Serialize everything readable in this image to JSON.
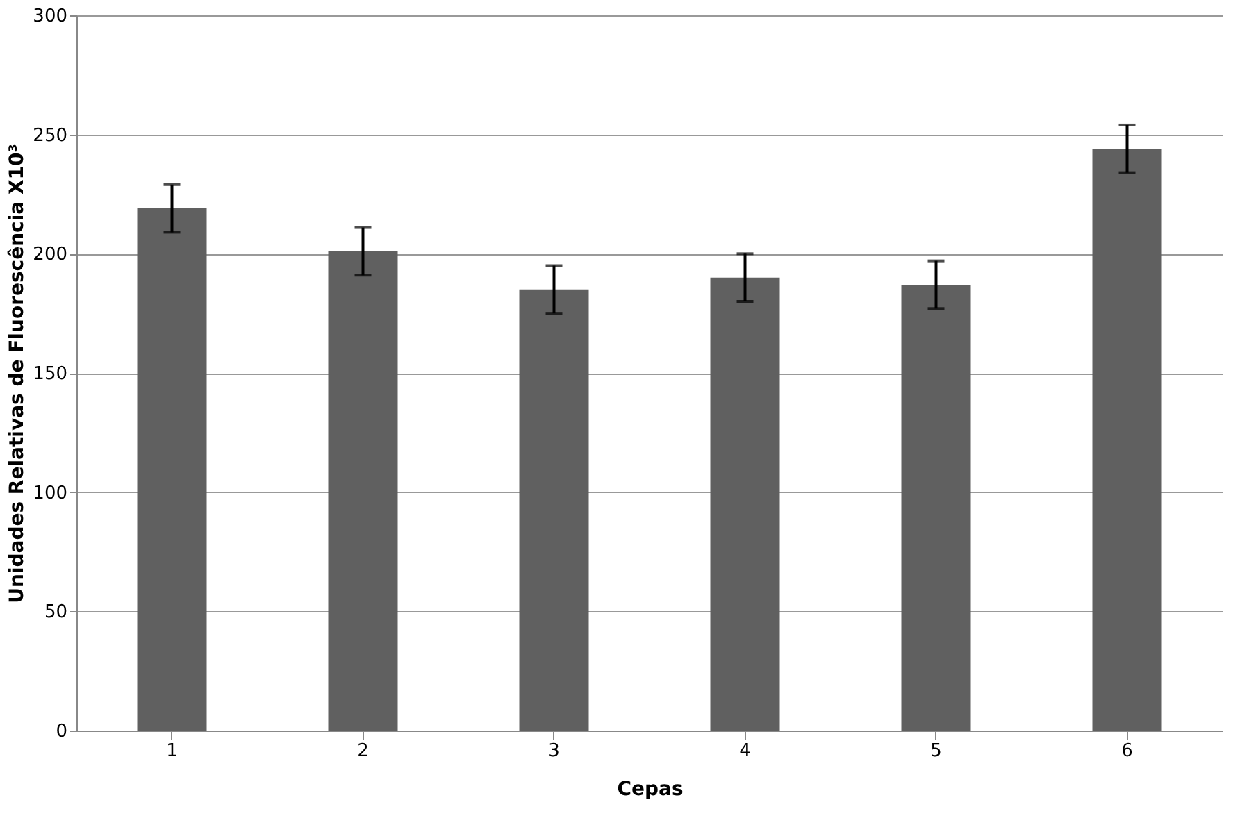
{
  "chart_data": {
    "type": "bar",
    "xlabel": "Cepas",
    "ylabel": "Unidades Relativas de Fluorescência X10³",
    "categories": [
      "1",
      "2",
      "3",
      "4",
      "5",
      "6"
    ],
    "values": [
      219,
      201,
      185,
      190,
      187,
      244
    ],
    "errors": [
      10,
      10,
      10,
      10,
      10,
      10
    ],
    "color": "#606060",
    "ylim": [
      0,
      300
    ],
    "yticks": [
      0,
      50,
      100,
      150,
      200,
      250,
      300
    ],
    "grid": "y"
  }
}
